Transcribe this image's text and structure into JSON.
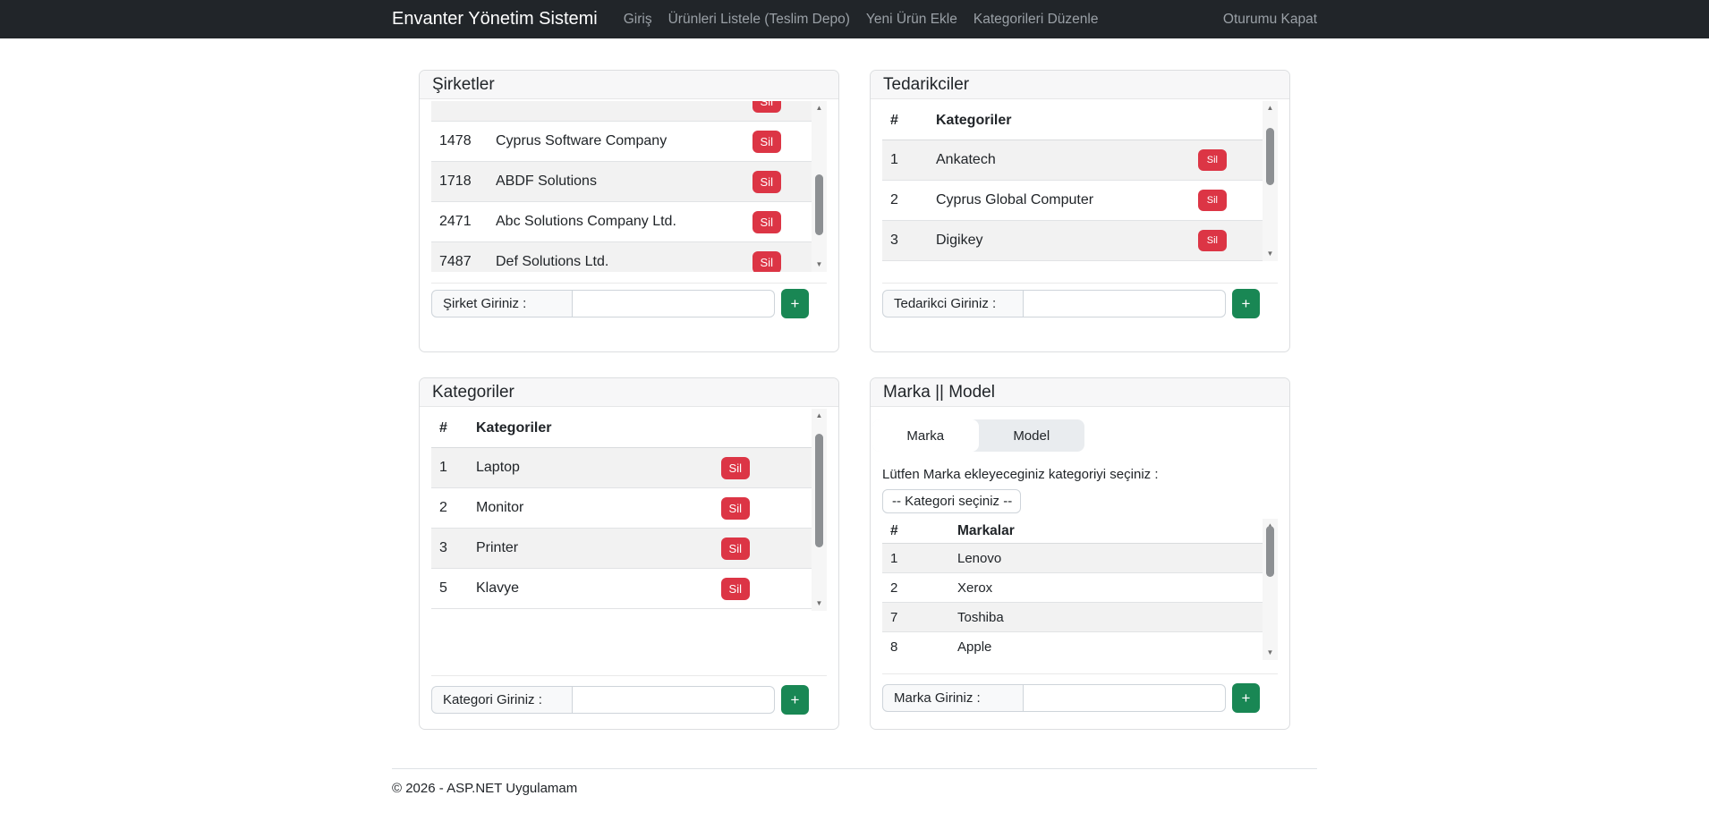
{
  "navbar": {
    "brand": "Envanter Yönetim Sistemi",
    "links": [
      "Giriş",
      "Ürünleri Listele (Teslim Depo)",
      "Yeni Ürün Ekle",
      "Kategorileri Düzenle"
    ],
    "logout": "Oturumu Kapat"
  },
  "cards": {
    "sirketler": {
      "title": "Şirketler",
      "delete_label": "Sil",
      "rows": [
        {
          "id": "",
          "name": "",
          "partial": true
        },
        {
          "id": "1478",
          "name": "Cyprus Software Company"
        },
        {
          "id": "1718",
          "name": "ABDF Solutions"
        },
        {
          "id": "2471",
          "name": "Abc Solutions Company Ltd."
        },
        {
          "id": "7487",
          "name": "Def Solutions Ltd."
        }
      ],
      "input_label": "Şirket Giriniz :",
      "input_value": "",
      "add_label": "+"
    },
    "tedarikciler": {
      "title": "Tedarikciler",
      "headers": [
        "#",
        "Kategoriler"
      ],
      "delete_label": "Sil",
      "rows": [
        {
          "id": "1",
          "name": "Ankatech"
        },
        {
          "id": "2",
          "name": "Cyprus Global Computer"
        },
        {
          "id": "3",
          "name": "Digikey"
        }
      ],
      "input_label": "Tedarikci Giriniz :",
      "input_value": "",
      "add_label": "+"
    },
    "kategoriler": {
      "title": "Kategoriler",
      "headers": [
        "#",
        "Kategoriler"
      ],
      "delete_label": "Sil",
      "rows": [
        {
          "id": "1",
          "name": "Laptop"
        },
        {
          "id": "2",
          "name": "Monitor"
        },
        {
          "id": "3",
          "name": "Printer"
        },
        {
          "id": "5",
          "name": "Klavye"
        }
      ],
      "input_label": "Kategori Giriniz :",
      "input_value": "",
      "add_label": "+"
    },
    "marka_model": {
      "title": "Marka || Model",
      "tabs": [
        {
          "label": "Marka",
          "active": true
        },
        {
          "label": "Model",
          "active": false
        }
      ],
      "helper_text": "Lütfen Marka ekleyeceginiz kategoriyi seçiniz :",
      "select_value": "-- Kategori seçiniz --",
      "headers": [
        "#",
        "Markalar"
      ],
      "rows": [
        {
          "id": "1",
          "name": "Lenovo"
        },
        {
          "id": "2",
          "name": "Xerox"
        },
        {
          "id": "7",
          "name": "Toshiba"
        },
        {
          "id": "8",
          "name": "Apple"
        }
      ],
      "input_label": "Marka Giriniz :",
      "input_value": "",
      "add_label": "+"
    }
  },
  "footer": {
    "text": "© 2026 - ASP.NET Uygulamam"
  },
  "colors": {
    "navbar_bg": "#212529",
    "danger": "#dc3545",
    "success": "#198754",
    "striped_row": "#f2f2f2",
    "card_header_bg": "#f7f7f8",
    "border": "#dee2e6"
  }
}
